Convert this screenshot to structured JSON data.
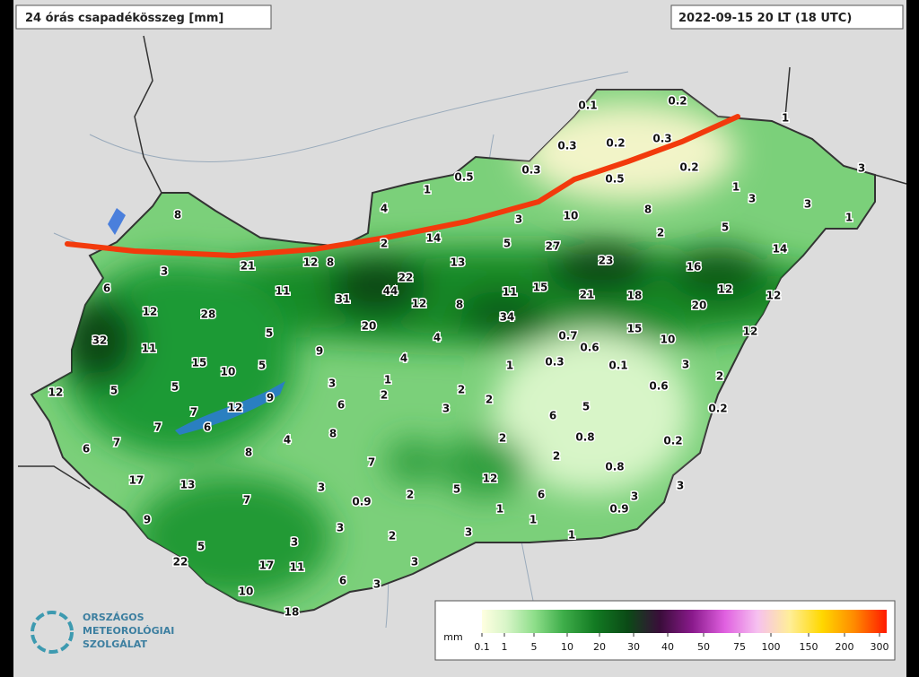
{
  "header": {
    "title": "24 órás csapadékösszeg [mm]",
    "timestamp": "2022-09-15 20 LT (18 UTC)"
  },
  "stations": [
    0.1,
    0.2,
    1,
    0.3,
    0.2,
    0.3,
    0.2,
    3,
    0.5,
    0.3,
    0.5,
    1,
    1,
    3,
    3,
    1,
    4,
    3,
    10,
    8,
    2,
    5,
    14,
    8,
    21,
    12,
    8,
    2,
    14,
    5,
    27,
    23,
    16,
    13,
    22,
    44,
    31,
    12,
    8,
    11,
    15,
    21,
    18,
    12,
    12,
    20,
    3,
    6,
    11,
    12,
    28,
    34,
    20,
    15,
    10,
    12,
    5,
    32,
    11,
    9,
    4,
    0.7,
    0.6,
    15,
    10,
    5,
    4,
    1,
    0.3,
    0.1,
    3,
    2,
    12,
    5,
    5,
    3,
    1,
    2,
    0.6,
    9,
    12,
    6,
    2,
    3,
    2,
    5,
    0.2,
    7,
    6,
    6,
    7,
    7,
    6,
    4,
    8,
    2,
    0.8,
    0.2,
    8,
    7,
    2,
    0.8,
    17,
    13,
    3,
    12,
    2,
    5,
    6,
    3,
    7,
    0.9,
    1,
    3,
    0.9,
    9,
    1,
    3,
    3,
    2,
    1,
    5,
    3,
    22,
    17,
    11,
    3,
    6,
    3,
    10,
    18
  ],
  "legend": {
    "unit": "mm",
    "ticks": [
      0.1,
      1,
      5,
      10,
      20,
      30,
      40,
      50,
      75,
      100,
      150,
      200,
      300
    ]
  },
  "logo": {
    "lines": [
      "ORSZÁGOS",
      "METEOROLÓGIAI",
      "SZOLGÁLAT"
    ]
  }
}
